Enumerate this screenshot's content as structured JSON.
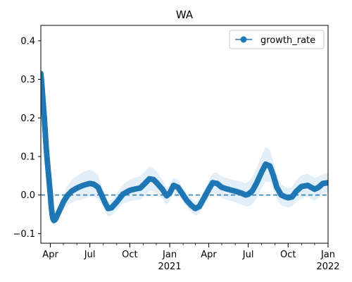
{
  "chart_data": {
    "type": "line",
    "title": "WA",
    "xlabel": "",
    "ylabel": "",
    "xlim": [
      "2020-03-10",
      "2022-01-01"
    ],
    "ylim": [
      -0.125,
      0.44
    ],
    "yticks": [
      -0.1,
      0.0,
      0.1,
      0.2,
      0.3,
      0.4
    ],
    "ytick_labels": [
      "−0.1",
      "0.0",
      "0.1",
      "0.2",
      "0.3",
      "0.4"
    ],
    "xticks": [
      {
        "date": "2020-04-01",
        "label": "Apr",
        "year": ""
      },
      {
        "date": "2020-07-01",
        "label": "Jul",
        "year": ""
      },
      {
        "date": "2020-10-01",
        "label": "Oct",
        "year": ""
      },
      {
        "date": "2021-01-01",
        "label": "Jan",
        "year": "2021"
      },
      {
        "date": "2021-04-01",
        "label": "Apr",
        "year": ""
      },
      {
        "date": "2021-07-01",
        "label": "Jul",
        "year": ""
      },
      {
        "date": "2021-10-01",
        "label": "Oct",
        "year": ""
      },
      {
        "date": "2022-01-01",
        "label": "Jan",
        "year": "2022"
      }
    ],
    "reference_line": {
      "y": 0.0,
      "style": "dashed"
    },
    "legend": {
      "position": "top-right"
    },
    "grid": false,
    "series": [
      {
        "name": "growth_rate",
        "color": "#1f77b4",
        "band_color": "#cfe2f3",
        "marker": "circle",
        "x": [
          "2020-03-10",
          "2020-03-12",
          "2020-03-14",
          "2020-03-16",
          "2020-03-18",
          "2020-03-20",
          "2020-03-22",
          "2020-03-24",
          "2020-03-26",
          "2020-03-28",
          "2020-03-30",
          "2020-04-01",
          "2020-04-03",
          "2020-04-05",
          "2020-04-07",
          "2020-04-09",
          "2020-04-12",
          "2020-04-16",
          "2020-04-20",
          "2020-04-25",
          "2020-05-01",
          "2020-05-10",
          "2020-05-20",
          "2020-06-01",
          "2020-06-15",
          "2020-07-01",
          "2020-07-10",
          "2020-07-20",
          "2020-07-28",
          "2020-08-05",
          "2020-08-12",
          "2020-08-20",
          "2020-09-01",
          "2020-09-15",
          "2020-10-01",
          "2020-10-15",
          "2020-10-25",
          "2020-11-05",
          "2020-11-15",
          "2020-11-25",
          "2020-12-05",
          "2020-12-15",
          "2020-12-25",
          "2021-01-01",
          "2021-01-10",
          "2021-01-20",
          "2021-02-01",
          "2021-02-10",
          "2021-02-20",
          "2021-03-01",
          "2021-03-10",
          "2021-03-20",
          "2021-04-01",
          "2021-04-10",
          "2021-04-20",
          "2021-05-01",
          "2021-05-15",
          "2021-06-01",
          "2021-06-15",
          "2021-06-25",
          "2021-07-01",
          "2021-07-10",
          "2021-07-20",
          "2021-08-01",
          "2021-08-10",
          "2021-08-20",
          "2021-08-28",
          "2021-09-05",
          "2021-09-15",
          "2021-09-25",
          "2021-10-01",
          "2021-10-10",
          "2021-10-20",
          "2021-11-01",
          "2021-11-15",
          "2021-12-01",
          "2021-12-10",
          "2021-12-20",
          "2022-01-01"
        ],
        "y": [
          0.315,
          0.29,
          0.26,
          0.23,
          0.2,
          0.165,
          0.13,
          0.1,
          0.075,
          0.05,
          0.025,
          0.0,
          -0.03,
          -0.05,
          -0.062,
          -0.066,
          -0.064,
          -0.055,
          -0.045,
          -0.033,
          -0.018,
          -0.002,
          0.01,
          0.018,
          0.025,
          0.03,
          0.028,
          0.02,
          0.0,
          -0.02,
          -0.035,
          -0.033,
          -0.018,
          0.002,
          0.012,
          0.016,
          0.018,
          0.03,
          0.042,
          0.04,
          0.028,
          0.015,
          -0.002,
          0.005,
          0.025,
          0.02,
          0.0,
          -0.015,
          -0.027,
          -0.035,
          -0.03,
          -0.01,
          0.015,
          0.032,
          0.03,
          0.02,
          0.015,
          0.01,
          0.005,
          0.0,
          0.002,
          0.01,
          0.03,
          0.06,
          0.08,
          0.075,
          0.05,
          0.02,
          0.0,
          -0.005,
          -0.007,
          -0.005,
          0.01,
          0.022,
          0.025,
          0.015,
          0.02,
          0.03,
          0.032
        ],
        "band_halfwidth": [
          0.02,
          0.02,
          0.02,
          0.02,
          0.018,
          0.018,
          0.016,
          0.016,
          0.015,
          0.015,
          0.015,
          0.015,
          0.015,
          0.015,
          0.015,
          0.015,
          0.015,
          0.015,
          0.015,
          0.015,
          0.018,
          0.025,
          0.03,
          0.032,
          0.035,
          0.035,
          0.033,
          0.03,
          0.025,
          0.022,
          0.02,
          0.02,
          0.022,
          0.025,
          0.028,
          0.03,
          0.03,
          0.032,
          0.032,
          0.03,
          0.028,
          0.025,
          0.022,
          0.02,
          0.02,
          0.02,
          0.018,
          0.018,
          0.018,
          0.018,
          0.018,
          0.02,
          0.022,
          0.025,
          0.028,
          0.028,
          0.028,
          0.028,
          0.03,
          0.03,
          0.032,
          0.035,
          0.04,
          0.042,
          0.045,
          0.042,
          0.035,
          0.03,
          0.028,
          0.025,
          0.025,
          0.025,
          0.028,
          0.03,
          0.03,
          0.03,
          0.028,
          0.025,
          0.025
        ]
      }
    ]
  }
}
